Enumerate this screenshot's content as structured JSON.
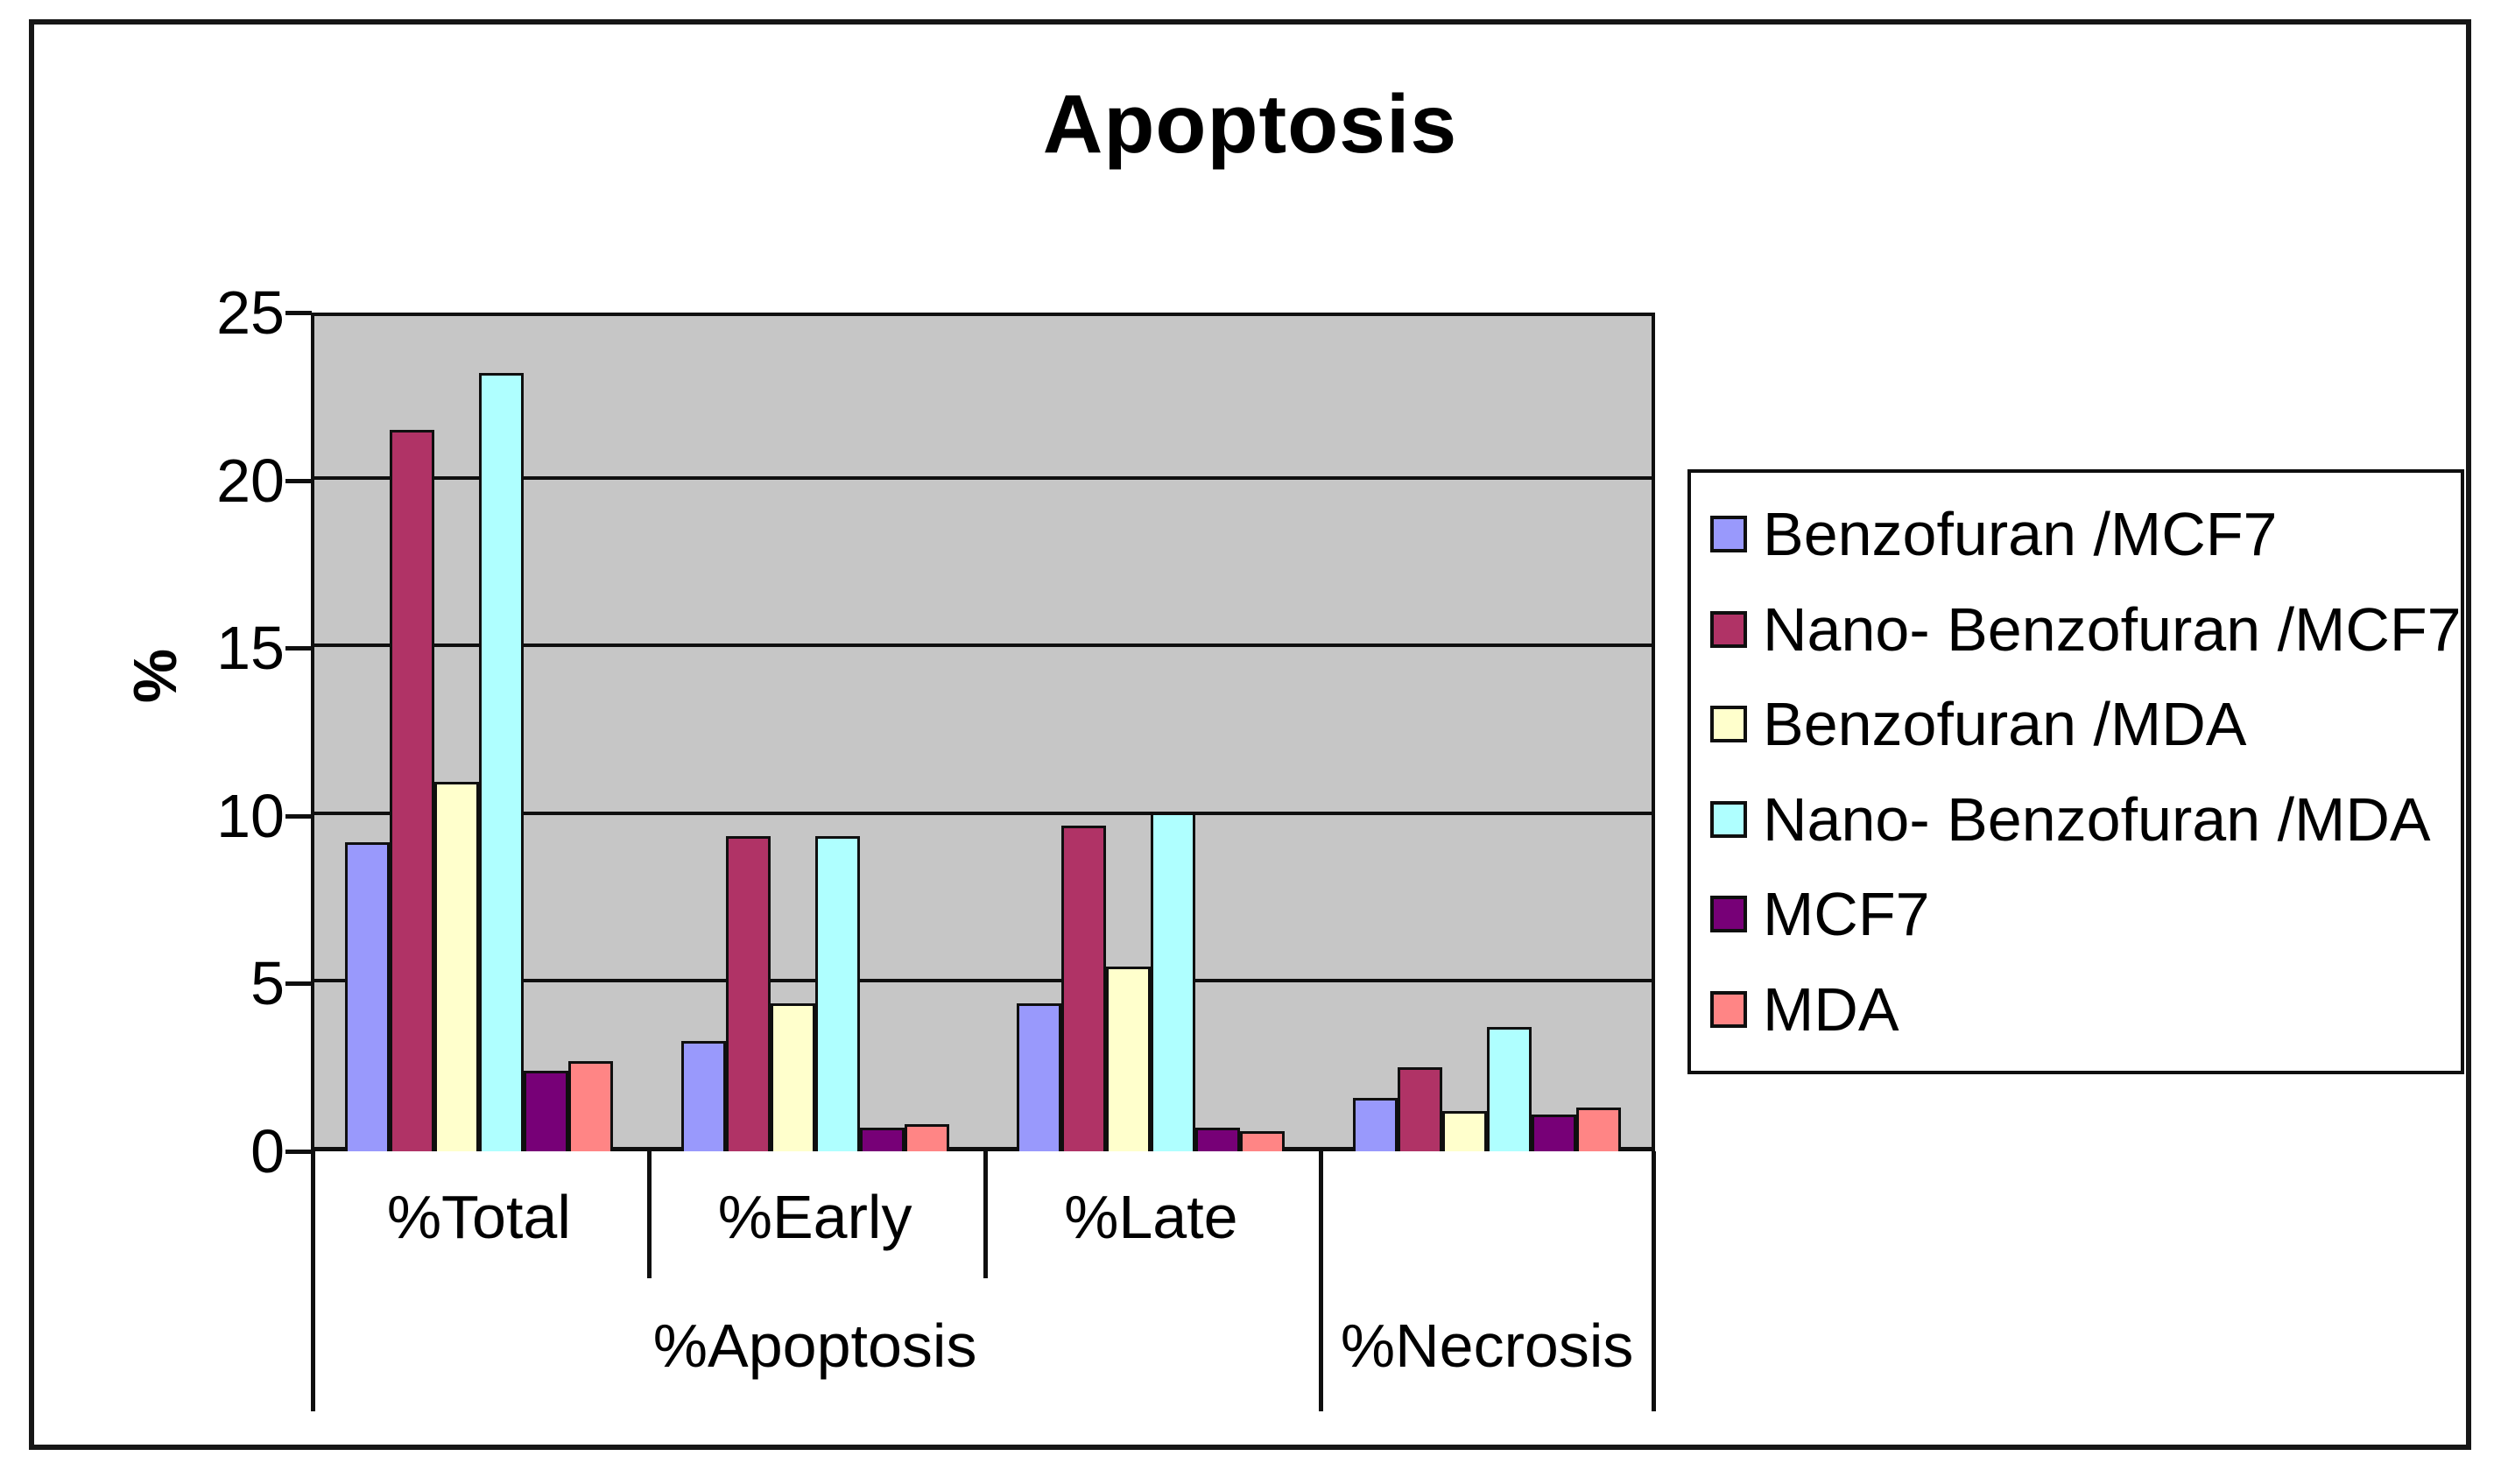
{
  "chart_data": {
    "type": "bar",
    "title": "Apoptosis",
    "ylabel": "%",
    "ylim": [
      0,
      25
    ],
    "yticks": [
      0,
      5,
      10,
      15,
      20,
      25
    ],
    "grid": true,
    "legend_position": "right",
    "plot_bg": "#C6C6C6",
    "axis_color": "#0f0f0f",
    "frame_color": "#161616",
    "categories": [
      "%Total",
      "%Early",
      "%Late",
      "%Necrosis"
    ],
    "x_axis": {
      "tier1_labels": [
        "%Total",
        "%Early",
        "%Late",
        ""
      ],
      "tier2_groups": [
        {
          "label": "%Apoptosis",
          "span": 3
        },
        {
          "label": "%Necrosis",
          "span": 1
        }
      ]
    },
    "series": [
      {
        "name": "Benzofuran /MCF7",
        "color": "#9999FC",
        "values": [
          9.2,
          3.3,
          4.4,
          1.6
        ]
      },
      {
        "name": "Nano- Benzofuran /MCF7",
        "color": "#B03366",
        "values": [
          21.5,
          9.4,
          9.7,
          2.5
        ]
      },
      {
        "name": "Benzofuran /MDA",
        "color": "#FFFFCC",
        "values": [
          11.0,
          4.4,
          5.5,
          1.2
        ]
      },
      {
        "name": "Nano- Benzofuran /MDA",
        "color": "#AFFFFF",
        "values": [
          23.2,
          9.4,
          10.1,
          3.7
        ]
      },
      {
        "name": "MCF7",
        "color": "#770077",
        "values": [
          2.4,
          0.7,
          0.7,
          1.1
        ]
      },
      {
        "name": "MDA",
        "color": "#FF8585",
        "values": [
          2.7,
          0.8,
          0.6,
          1.3
        ]
      }
    ]
  }
}
